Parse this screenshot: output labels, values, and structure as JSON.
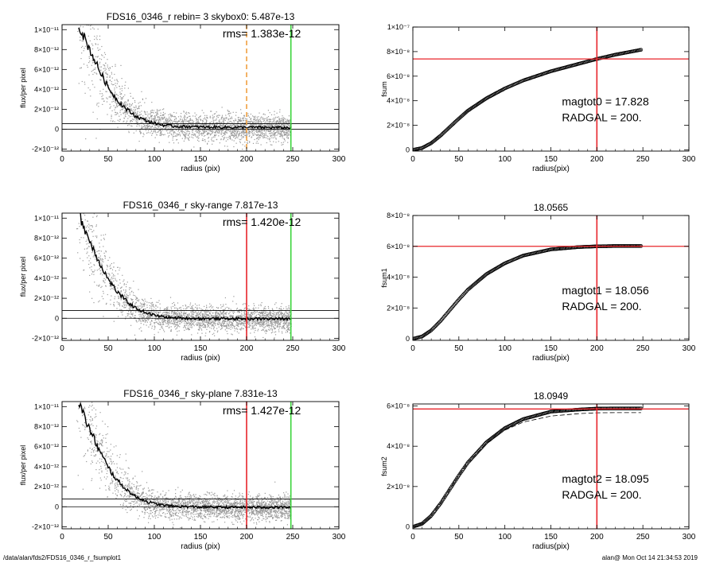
{
  "footer": {
    "path": "/data/alan/fds2/FDS16_0346_r_fsumplot1",
    "user_time": "alan@  Mon Oct 14 21:34:53 2019"
  },
  "colors": {
    "black": "#000000",
    "grey_points": "#9a9a9a",
    "red": "#e8242a",
    "green": "#3ad43a",
    "orange": "#f0a040"
  },
  "chart_data": [
    {
      "type": "scatter",
      "title": "FDS16_0346_r rebin= 3    skybox0:  5.487e-13",
      "annotation": "rms= 1.383e-12",
      "xlabel": "radius (pix)",
      "ylabel": "flux/per pixel",
      "xlim": [
        0,
        300
      ],
      "ylim": [
        -2.2e-12,
        1.05e-11
      ],
      "xticks": [
        0,
        50,
        100,
        150,
        200,
        250,
        300
      ],
      "xticklabels": [
        "0",
        "50",
        "100",
        "150",
        "200",
        "250",
        "300"
      ],
      "yticks": [
        -2e-12,
        0,
        2e-12,
        4e-12,
        6e-12,
        8e-12,
        1e-11
      ],
      "yticklabels": [
        "-2×10⁻¹²",
        "0",
        "2×10⁻¹²",
        "4×10⁻¹²",
        "6×10⁻¹²",
        "8×10⁻¹²",
        "1×10⁻¹¹"
      ],
      "sky_level": 5.487e-13,
      "profile_end": 248,
      "vlines": [
        {
          "x": 200,
          "color": "orange",
          "style": "dashed"
        },
        {
          "x": 248,
          "color": "green",
          "style": "solid"
        }
      ],
      "profile": {
        "x": [
          18,
          25,
          30,
          40,
          50,
          60,
          70,
          80,
          90,
          100,
          110,
          120,
          150,
          200,
          248
        ],
        "y": [
          1.05e-11,
          9e-12,
          8e-12,
          6e-12,
          4.2e-12,
          2.9e-12,
          2e-12,
          1.3e-12,
          9e-13,
          6e-13,
          4e-13,
          3e-13,
          2.2e-13,
          1.8e-13,
          1.5e-13
        ]
      },
      "scatter_points": "grey",
      "grid": false
    },
    {
      "type": "line",
      "title": "",
      "xlabel": "radius(pix)",
      "ylabel": "fsum",
      "xlim": [
        0,
        300
      ],
      "ylim": [
        -1e-09,
        1e-07
      ],
      "xticks": [
        0,
        50,
        100,
        150,
        200,
        250,
        300
      ],
      "xticklabels": [
        "0",
        "50",
        "100",
        "150",
        "200",
        "250",
        "300"
      ],
      "yticks": [
        0,
        2e-08,
        4e-08,
        6e-08,
        8e-08,
        1e-07
      ],
      "yticklabels": [
        "0",
        "2×10⁻⁸",
        "4×10⁻⁸",
        "6×10⁻⁸",
        "8×10⁻⁸",
        "1×10⁻⁷"
      ],
      "annotations": [
        "magtot0 =  17.828",
        "RADGAL =    200."
      ],
      "hline": 7.4e-08,
      "vline": 200,
      "curve": {
        "x": [
          0,
          10,
          20,
          30,
          40,
          50,
          60,
          80,
          100,
          120,
          150,
          180,
          200,
          220,
          248
        ],
        "y": [
          0,
          1.5e-09,
          5.5e-09,
          1.15e-08,
          1.85e-08,
          2.55e-08,
          3.2e-08,
          4.2e-08,
          5e-08,
          5.65e-08,
          6.4e-08,
          7e-08,
          7.4e-08,
          7.75e-08,
          8.15e-08
        ]
      },
      "dashed_curve": null,
      "grid": false
    },
    {
      "type": "scatter",
      "title": "FDS16_0346_r sky-range  7.817e-13",
      "annotation": "rms= 1.420e-12",
      "xlabel": "radius (pix)",
      "ylabel": "flux/per pixel",
      "xlim": [
        0,
        300
      ],
      "ylim": [
        -2.2e-12,
        1.05e-11
      ],
      "xticks": [
        0,
        50,
        100,
        150,
        200,
        250,
        300
      ],
      "xticklabels": [
        "0",
        "50",
        "100",
        "150",
        "200",
        "250",
        "300"
      ],
      "yticks": [
        -2e-12,
        0,
        2e-12,
        4e-12,
        6e-12,
        8e-12,
        1e-11
      ],
      "yticklabels": [
        "-2×10⁻¹²",
        "0",
        "2×10⁻¹²",
        "4×10⁻¹²",
        "6×10⁻¹²",
        "8×10⁻¹²",
        "1×10⁻¹¹"
      ],
      "sky_level": 7.817e-13,
      "profile_end": 248,
      "vlines": [
        {
          "x": 200,
          "color": "red",
          "style": "solid"
        },
        {
          "x": 248,
          "color": "green",
          "style": "solid"
        }
      ],
      "profile": {
        "x": [
          18,
          25,
          30,
          40,
          50,
          60,
          70,
          80,
          90,
          100,
          110,
          120,
          150,
          200,
          248
        ],
        "y": [
          1.05e-11,
          8.8e-12,
          7.7e-12,
          5.7e-12,
          3.9e-12,
          2.6e-12,
          1.7e-12,
          1e-12,
          6e-13,
          3e-13,
          1.5e-13,
          5e-14,
          -3e-14,
          -5e-14,
          -5e-14
        ]
      },
      "scatter_points": "grey",
      "grid": false
    },
    {
      "type": "line",
      "title": "18.0565",
      "xlabel": "radius(pix)",
      "ylabel": "fsum1",
      "xlim": [
        0,
        300
      ],
      "ylim": [
        -1e-09,
        8e-08
      ],
      "xticks": [
        0,
        50,
        100,
        150,
        200,
        250,
        300
      ],
      "xticklabels": [
        "0",
        "50",
        "100",
        "150",
        "200",
        "250",
        "300"
      ],
      "yticks": [
        0,
        2e-08,
        4e-08,
        6e-08,
        8e-08
      ],
      "yticklabels": [
        "0",
        "2×10⁻⁸",
        "4×10⁻⁸",
        "6×10⁻⁸",
        "8×10⁻⁸"
      ],
      "annotations": [
        "magtot1 =  18.056",
        "RADGAL =    200."
      ],
      "hline": 6e-08,
      "vline": 200,
      "curve": {
        "x": [
          0,
          10,
          20,
          30,
          40,
          50,
          60,
          80,
          100,
          120,
          150,
          180,
          200,
          220,
          248
        ],
        "y": [
          0,
          1.5e-09,
          5.5e-09,
          1.15e-08,
          1.85e-08,
          2.55e-08,
          3.2e-08,
          4.2e-08,
          4.9e-08,
          5.4e-08,
          5.8e-08,
          5.95e-08,
          6e-08,
          6.02e-08,
          6.02e-08
        ]
      },
      "dashed_curve": null,
      "grid": false
    },
    {
      "type": "scatter",
      "title": "FDS16_0346_r sky-plane  7.831e-13",
      "annotation": "rms= 1.427e-12",
      "xlabel": "radius (pix)",
      "ylabel": "flux/per pixel",
      "xlim": [
        0,
        300
      ],
      "ylim": [
        -2.2e-12,
        1.05e-11
      ],
      "xticks": [
        0,
        50,
        100,
        150,
        200,
        250,
        300
      ],
      "xticklabels": [
        "0",
        "50",
        "100",
        "150",
        "200",
        "250",
        "300"
      ],
      "yticks": [
        -2e-12,
        0,
        2e-12,
        4e-12,
        6e-12,
        8e-12,
        1e-11
      ],
      "yticklabels": [
        "-2×10⁻¹²",
        "0",
        "2×10⁻¹²",
        "4×10⁻¹²",
        "6×10⁻¹²",
        "8×10⁻¹²",
        "1×10⁻¹¹"
      ],
      "sky_level": 7.831e-13,
      "profile_end": 248,
      "vlines": [
        {
          "x": 200,
          "color": "red",
          "style": "solid"
        },
        {
          "x": 248,
          "color": "green",
          "style": "solid"
        }
      ],
      "profile": {
        "x": [
          18,
          25,
          30,
          40,
          50,
          60,
          70,
          80,
          90,
          100,
          110,
          120,
          150,
          200,
          248
        ],
        "y": [
          1.05e-11,
          8.8e-12,
          7.7e-12,
          5.7e-12,
          3.9e-12,
          2.6e-12,
          1.7e-12,
          1e-12,
          6e-13,
          3e-13,
          1.5e-13,
          5e-14,
          -3e-14,
          -5e-14,
          -6e-14
        ]
      },
      "scatter_points": "grey",
      "grid": false
    },
    {
      "type": "line",
      "title": "18.0949",
      "xlabel": "radius(pix)",
      "ylabel": "fsum2",
      "xlim": [
        0,
        300
      ],
      "ylim": [
        -1e-09,
        6.1e-08
      ],
      "xticks": [
        0,
        50,
        100,
        150,
        200,
        250,
        300
      ],
      "xticklabels": [
        "0",
        "50",
        "100",
        "150",
        "200",
        "250",
        "300"
      ],
      "yticks": [
        0,
        2e-08,
        4e-08,
        6e-08
      ],
      "yticklabels": [
        "0",
        "2×10⁻⁸",
        "4×10⁻⁸",
        "6×10⁻⁸"
      ],
      "annotations": [
        "magtot2 =  18.095",
        "RADGAL =    200."
      ],
      "hline": 5.85e-08,
      "vline": 200,
      "curve": {
        "x": [
          0,
          10,
          20,
          30,
          40,
          50,
          60,
          80,
          100,
          120,
          150,
          180,
          200,
          220,
          248
        ],
        "y": [
          0,
          1.5e-09,
          5.5e-09,
          1.15e-08,
          1.85e-08,
          2.55e-08,
          3.2e-08,
          4.2e-08,
          4.9e-08,
          5.35e-08,
          5.72e-08,
          5.82e-08,
          5.87e-08,
          5.88e-08,
          5.88e-08
        ]
      },
      "dashed_curve": {
        "x": [
          0,
          10,
          20,
          30,
          40,
          50,
          60,
          80,
          100,
          120,
          150,
          180,
          200,
          220,
          248
        ],
        "y": [
          0,
          1.5e-09,
          5.5e-09,
          1.15e-08,
          1.85e-08,
          2.55e-08,
          3.2e-08,
          4.15e-08,
          4.8e-08,
          5.2e-08,
          5.5e-08,
          5.62e-08,
          5.66e-08,
          5.67e-08,
          5.67e-08
        ]
      },
      "grid": false
    }
  ]
}
